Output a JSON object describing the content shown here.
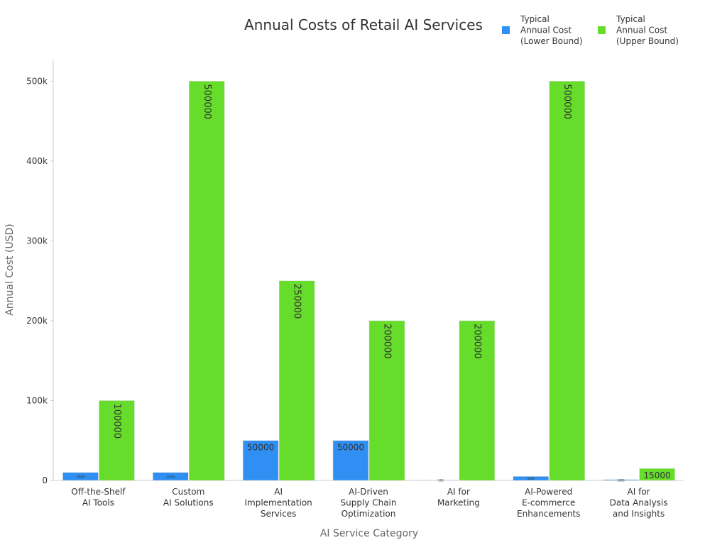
{
  "chart_data": {
    "type": "bar",
    "title": "Annual Costs of Retail AI Services",
    "x_label": "AI Service Category",
    "y_label": "Annual Cost (USD)",
    "categories": [
      "Off-the-Shelf\nAI Tools",
      "Custom\nAI Solutions",
      "AI\nImplementation\nServices",
      "AI-Driven\nSupply Chain\nOptimization",
      "AI for\nMarketing",
      "AI-Powered\nE-commerce\nEnhancements",
      "AI for\nData Analysis\nand Insights"
    ],
    "series": [
      {
        "name": "Typical\nAnnual Cost\n(Lower Bound)",
        "color": "#2f8ff2",
        "values": [
          10000,
          10000,
          50000,
          50000,
          500,
          5000,
          1000
        ]
      },
      {
        "name": "Typical\nAnnual Cost\n(Upper Bound)",
        "color": "#66dd2a",
        "values": [
          100000,
          500000,
          250000,
          200000,
          200000,
          500000,
          15000
        ]
      }
    ],
    "ylim": [
      0,
      527000
    ],
    "yticks": [
      0,
      {
        "value": 100000,
        "label": "100k"
      },
      {
        "value": 200000,
        "label": "200k"
      },
      {
        "value": 300000,
        "label": "300k"
      },
      {
        "value": 400000,
        "label": "400k"
      },
      {
        "value": 500000,
        "label": "500k"
      }
    ],
    "legend": "top-right"
  }
}
